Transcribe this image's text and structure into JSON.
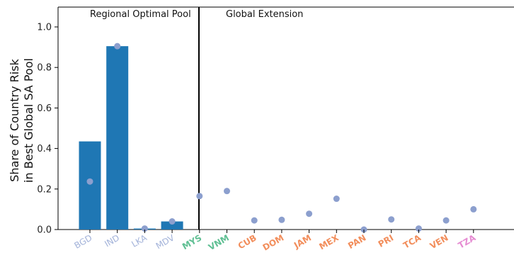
{
  "chart_data": {
    "type": "bar",
    "ylabel_line1": "Share of Country Risk",
    "ylabel_line2": "in Best Global SA Pool",
    "ylim": [
      0,
      1.1
    ],
    "yticks": [
      "0.0",
      "0.2",
      "0.4",
      "0.6",
      "0.8",
      "1.0"
    ],
    "panels": [
      {
        "title": "Regional Optimal Pool"
      },
      {
        "title": "Global Extension"
      }
    ],
    "categories": [
      {
        "label": "BGD",
        "bar": 0.435,
        "point": 0.237,
        "color": "#a2b2d9",
        "bold": false
      },
      {
        "label": "IND",
        "bar": 0.905,
        "point": 0.905,
        "color": "#a2b2d9",
        "bold": false
      },
      {
        "label": "LKA",
        "bar": 0.005,
        "point": 0.005,
        "color": "#a2b2d9",
        "bold": false
      },
      {
        "label": "MDV",
        "bar": 0.04,
        "point": 0.04,
        "color": "#a2b2d9",
        "bold": false
      },
      {
        "label": "MYS",
        "bar": 0,
        "point": 0.165,
        "color": "#5fbf93",
        "bold": true
      },
      {
        "label": "VNM",
        "bar": 0,
        "point": 0.19,
        "color": "#5fbf93",
        "bold": true
      },
      {
        "label": "CUB",
        "bar": 0,
        "point": 0.045,
        "color": "#f28e5c",
        "bold": true
      },
      {
        "label": "DOM",
        "bar": 0,
        "point": 0.048,
        "color": "#f28e5c",
        "bold": true
      },
      {
        "label": "JAM",
        "bar": 0,
        "point": 0.078,
        "color": "#f28e5c",
        "bold": true
      },
      {
        "label": "MEX",
        "bar": 0,
        "point": 0.152,
        "color": "#f28e5c",
        "bold": true
      },
      {
        "label": "PAN",
        "bar": 0,
        "point": 0.0,
        "color": "#f28e5c",
        "bold": true
      },
      {
        "label": "PRI",
        "bar": 0,
        "point": 0.05,
        "color": "#f28e5c",
        "bold": true
      },
      {
        "label": "TCA",
        "bar": 0,
        "point": 0.005,
        "color": "#f28e5c",
        "bold": true
      },
      {
        "label": "VEN",
        "bar": 0,
        "point": 0.045,
        "color": "#f28e5c",
        "bold": true
      },
      {
        "label": "TZA",
        "bar": 0,
        "point": 0.1,
        "color": "#e58ad1",
        "bold": true
      }
    ],
    "series": [
      {
        "kind": "bar",
        "color": "#1f77b4"
      },
      {
        "kind": "point",
        "color": "#8c9fce"
      }
    ],
    "grid": false,
    "legend": "none"
  }
}
